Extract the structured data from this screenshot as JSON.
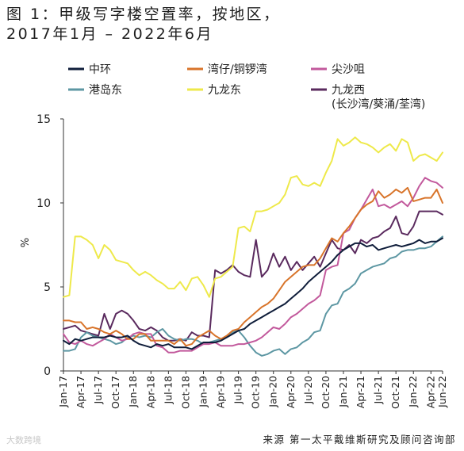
{
  "page": {
    "title_line1": "图 1：甲级写字楼空置率，按地区，",
    "title_line2": "2017年1月 – 2022年6月",
    "source": "来源 第一太平戴维斯研究及顾问咨询部",
    "watermark": "大数跨境"
  },
  "chart_data": {
    "type": "line",
    "title": "图 1：甲级写字楼空置率，按地区，2017年1月 – 2022年6月",
    "xlabel": "",
    "ylabel": "%",
    "ylim": [
      0,
      15
    ],
    "y_ticks": [
      "0",
      "5",
      "10",
      "15"
    ],
    "grid": false,
    "legend_position": "top",
    "x": [
      "Jan-17",
      "Feb-17",
      "Mar-17",
      "Apr-17",
      "May-17",
      "Jun-17",
      "Jul-17",
      "Aug-17",
      "Sep-17",
      "Oct-17",
      "Nov-17",
      "Dec-17",
      "Jan-18",
      "Feb-18",
      "Mar-18",
      "Apr-18",
      "May-18",
      "Jun-18",
      "Jul-18",
      "Aug-18",
      "Sep-18",
      "Oct-18",
      "Nov-18",
      "Dec-18",
      "Jan-19",
      "Feb-19",
      "Mar-19",
      "Apr-19",
      "May-19",
      "Jun-19",
      "Jul-19",
      "Aug-19",
      "Sep-19",
      "Oct-19",
      "Nov-19",
      "Dec-19",
      "Jan-20",
      "Feb-20",
      "Mar-20",
      "Apr-20",
      "May-20",
      "Jun-20",
      "Jul-20",
      "Aug-20",
      "Sep-20",
      "Oct-20",
      "Nov-20",
      "Dec-20",
      "Jan-21",
      "Feb-21",
      "Mar-21",
      "Apr-21",
      "May-21",
      "Jun-21",
      "Jul-21",
      "Aug-21",
      "Sep-21",
      "Oct-21",
      "Nov-21",
      "Dec-21",
      "Jan-22",
      "Feb-22",
      "Mar-22",
      "Apr-22",
      "May-22",
      "Jun-22"
    ],
    "x_tick_labels": [
      "Jan-17",
      "Apr-17",
      "Jul-17",
      "Oct-17",
      "Jan-18",
      "Apr-18",
      "Jul-18",
      "Oct-18",
      "Jan-19",
      "Apr-19",
      "Jul-19",
      "Oct-19",
      "Jan-20",
      "Apr-20",
      "Jul-20",
      "Oct-20",
      "Jan-21",
      "Apr-21",
      "Jul-21",
      "Oct-21",
      "Jan-22",
      "Apr-22",
      "Jun-22"
    ],
    "series": [
      {
        "name": "中环",
        "color": "#0f1d3a",
        "values": [
          1.8,
          1.6,
          1.9,
          1.8,
          1.9,
          2.0,
          2.0,
          2.0,
          2.1,
          2.0,
          2.0,
          2.1,
          1.8,
          1.6,
          1.5,
          1.4,
          1.6,
          1.5,
          1.6,
          1.4,
          1.4,
          1.4,
          1.3,
          1.5,
          1.7,
          1.7,
          1.7,
          1.8,
          2.0,
          2.2,
          2.4,
          2.5,
          2.8,
          3.0,
          3.2,
          3.4,
          3.6,
          3.8,
          4.0,
          4.3,
          4.6,
          4.9,
          5.3,
          5.6,
          5.9,
          6.2,
          6.5,
          6.9,
          7.2,
          7.4,
          7.6,
          7.6,
          7.4,
          7.5,
          7.2,
          7.3,
          7.4,
          7.5,
          7.4,
          7.5,
          7.6,
          7.8,
          7.6,
          7.7,
          7.7,
          7.9
        ]
      },
      {
        "name": "湾仔/铜锣湾",
        "color": "#d8742a",
        "values": [
          3.0,
          3.0,
          2.9,
          2.9,
          2.5,
          2.6,
          2.5,
          2.3,
          2.2,
          2.4,
          2.2,
          1.9,
          1.9,
          2.2,
          2.2,
          1.8,
          1.8,
          1.8,
          1.8,
          1.6,
          1.9,
          1.5,
          1.6,
          2.0,
          2.2,
          2.4,
          2.1,
          1.9,
          2.1,
          2.4,
          2.5,
          2.9,
          3.2,
          3.5,
          3.8,
          4.0,
          4.3,
          4.8,
          5.3,
          5.6,
          5.9,
          6.2,
          6.3,
          6.3,
          6.7,
          7.3,
          7.9,
          7.7,
          8.2,
          8.6,
          9.1,
          9.6,
          9.9,
          10.1,
          10.7,
          10.3,
          10.5,
          10.8,
          10.6,
          10.9,
          10.1,
          10.2,
          10.3,
          10.3,
          10.8,
          10.0
        ]
      },
      {
        "name": "尖沙咀",
        "color": "#c2599c",
        "values": [
          2.2,
          1.7,
          1.6,
          1.8,
          1.6,
          1.5,
          1.7,
          1.9,
          2.2,
          2.0,
          1.8,
          1.9,
          2.2,
          2.3,
          2.2,
          2.2,
          1.5,
          1.4,
          1.1,
          1.1,
          1.2,
          1.2,
          1.2,
          1.4,
          1.6,
          1.6,
          1.7,
          1.5,
          1.5,
          1.5,
          1.6,
          1.6,
          1.7,
          1.8,
          2.0,
          2.3,
          2.6,
          2.5,
          2.8,
          3.2,
          3.4,
          3.7,
          4.0,
          4.2,
          4.5,
          6.0,
          6.2,
          6.3,
          8.2,
          8.4,
          9.1,
          9.6,
          10.2,
          10.8,
          9.8,
          9.9,
          9.7,
          9.9,
          10.1,
          9.8,
          10.3,
          11.0,
          11.5,
          11.3,
          11.2,
          10.9
        ]
      },
      {
        "name": "港岛东",
        "color": "#5d97a3",
        "values": [
          1.2,
          1.2,
          1.3,
          2.0,
          2.3,
          2.1,
          2.0,
          1.9,
          1.8,
          1.6,
          1.7,
          2.0,
          2.1,
          2.0,
          2.1,
          2.0,
          2.3,
          2.5,
          2.1,
          1.9,
          1.8,
          1.9,
          1.9,
          1.8,
          1.6,
          1.7,
          1.8,
          1.9,
          2.0,
          2.3,
          2.4,
          2.0,
          1.5,
          1.1,
          0.9,
          1.0,
          1.2,
          1.3,
          1.0,
          1.3,
          1.4,
          1.7,
          1.9,
          2.3,
          2.4,
          3.4,
          3.9,
          4.0,
          4.7,
          4.9,
          5.2,
          5.8,
          6.0,
          6.2,
          6.3,
          6.4,
          6.7,
          6.8,
          7.1,
          7.2,
          7.2,
          7.3,
          7.3,
          7.4,
          7.7,
          8.0
        ]
      },
      {
        "name": "九龙东",
        "color": "#eee94a",
        "values": [
          4.4,
          4.5,
          8.0,
          8.0,
          7.8,
          7.5,
          6.7,
          7.5,
          7.2,
          6.6,
          6.5,
          6.4,
          6.0,
          5.7,
          5.9,
          5.7,
          5.4,
          5.2,
          4.9,
          4.9,
          5.3,
          4.8,
          5.5,
          5.6,
          5.1,
          4.4,
          5.5,
          5.6,
          5.9,
          6.2,
          8.5,
          8.6,
          8.3,
          9.5,
          9.5,
          9.6,
          9.8,
          10.0,
          10.5,
          11.5,
          11.6,
          11.1,
          11.0,
          11.2,
          11.0,
          11.8,
          12.5,
          13.8,
          13.4,
          13.6,
          13.9,
          13.6,
          13.5,
          13.3,
          13.0,
          13.3,
          13.5,
          13.1,
          13.8,
          13.6,
          12.5,
          12.8,
          12.9,
          12.7,
          12.5,
          13.0
        ]
      },
      {
        "name": "九龙西\n(长沙湾/葵涌/荃湾)",
        "color": "#5a2a5e",
        "values": [
          2.5,
          2.6,
          2.7,
          2.4,
          2.3,
          2.2,
          2.1,
          3.4,
          2.5,
          3.4,
          3.6,
          3.4,
          3.0,
          2.5,
          2.4,
          2.6,
          2.4,
          2.0,
          1.8,
          1.8,
          1.9,
          1.8,
          2.3,
          2.1,
          2.1,
          2.0,
          6.0,
          5.8,
          6.0,
          6.3,
          5.9,
          5.7,
          5.6,
          7.8,
          5.6,
          6.0,
          7.0,
          6.2,
          6.8,
          6.0,
          6.5,
          6.0,
          6.4,
          6.8,
          6.2,
          7.0,
          7.8,
          7.3,
          7.2,
          7.5,
          7.0,
          7.8,
          7.6,
          7.9,
          8.0,
          8.3,
          8.5,
          9.2,
          8.2,
          8.1,
          8.6,
          9.5,
          9.5,
          9.5,
          9.5,
          9.3
        ]
      }
    ]
  }
}
